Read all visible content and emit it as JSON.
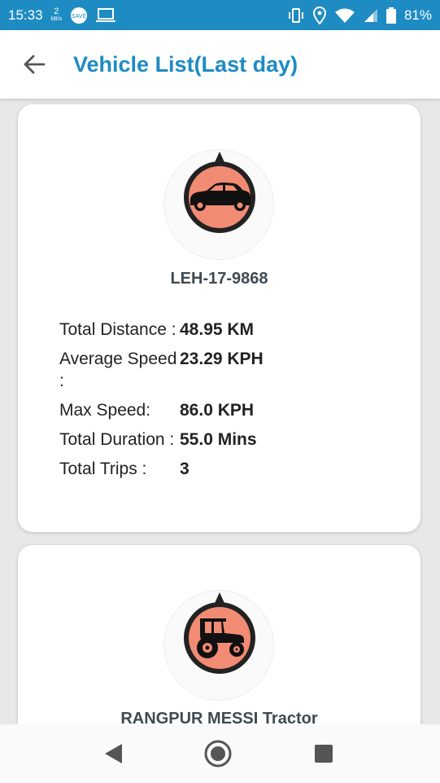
{
  "status_bar": {
    "time": "15:33",
    "net_speed_value": "2",
    "net_speed_unit": "kB/s",
    "battery": "81%",
    "icons": [
      "data-saver-icon",
      "laptop-icon",
      "vibrate-icon",
      "location-icon",
      "wifi-icon",
      "signal-icon",
      "battery-icon"
    ]
  },
  "app_bar": {
    "title": "Vehicle List(Last day)",
    "back_icon": "arrow-left-icon"
  },
  "vehicles": [
    {
      "name": "LEH-17-9868",
      "icon": "car-icon",
      "icon_color": "#f28b73",
      "stats": [
        {
          "label": "Total Distance :",
          "value": "48.95 KM"
        },
        {
          "label": "Average Speed :",
          "value": "23.29 KPH"
        },
        {
          "label": "Max Speed:",
          "value": "86.0 KPH"
        },
        {
          "label": "Total Duration :",
          "value": "55.0 Mins"
        },
        {
          "label": "Total Trips :",
          "value": "3"
        }
      ]
    },
    {
      "name": "RANGPUR MESSI Tractor",
      "icon": "tractor-icon",
      "icon_color": "#f28b73"
    }
  ],
  "nav_bar": {
    "back_icon": "triangle-back-icon",
    "home_icon": "circle-home-icon",
    "recents_icon": "square-recents-icon"
  },
  "colors": {
    "accent": "#1e8bc3",
    "background": "#e8e8e8"
  }
}
